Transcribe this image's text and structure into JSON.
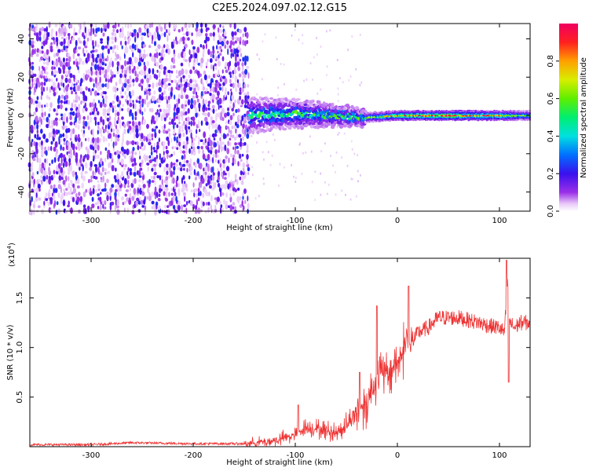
{
  "title": "C2E5.2024.097.02.12.G15",
  "chart_data": [
    {
      "type": "heatmap",
      "xlabel": "Height of straight line (km)",
      "ylabel": "Frequency (Hz)",
      "xlim": [
        -360,
        130
      ],
      "ylim": [
        -50,
        48
      ],
      "xticks": [
        -300,
        -200,
        -100,
        0,
        100
      ],
      "yticks": [
        -40,
        -20,
        0,
        20,
        40
      ],
      "colorbar": {
        "label": "Normalized spectral amplitude",
        "range": [
          0.0,
          1.0
        ],
        "ticks": [
          0.0,
          0.2,
          0.4,
          0.6,
          0.8
        ],
        "tick_labels": [
          "0.0",
          "0.2",
          "0.4",
          "0.6",
          "0.8"
        ]
      },
      "description_series": [
        {
          "name": "noise_field",
          "x_range": [
            -360,
            -145
          ],
          "freq_range": [
            -50,
            48
          ],
          "typical_amplitude": 0.1
        },
        {
          "name": "signal_band_center",
          "x": [
            -145,
            -100,
            -60,
            -30,
            0,
            50,
            100,
            130
          ],
          "freq": [
            0,
            1,
            0,
            -1,
            0,
            0,
            0,
            0
          ],
          "amplitude": [
            0.45,
            0.5,
            0.55,
            0.5,
            0.75,
            0.9,
            0.7,
            0.5
          ]
        }
      ]
    },
    {
      "type": "line",
      "xlabel": "Height of straight line (km)",
      "ylabel": "SNR (10 * v/v)",
      "y_multiplier_label": "(x10",
      "y_multiplier_exp": "4",
      "y_multiplier_close": ")",
      "xlim": [
        -360,
        130
      ],
      "ylim": [
        0,
        1.9
      ],
      "xticks": [
        -300,
        -200,
        -100,
        0,
        100
      ],
      "yticks": [
        0.5,
        1.0,
        1.5
      ],
      "ytick_labels": [
        "0.5",
        "1.0",
        "1.5"
      ],
      "color": "#ee3333",
      "series": [
        {
          "name": "SNR",
          "x": [
            -360,
            -300,
            -260,
            -200,
            -150,
            -120,
            -100,
            -90,
            -80,
            -60,
            -50,
            -40,
            -30,
            -22,
            -15,
            -10,
            -5,
            0,
            5,
            10,
            12,
            20,
            30,
            40,
            60,
            80,
            90,
            100,
            105,
            108,
            110,
            115,
            120,
            130
          ],
          "y": [
            0.02,
            0.02,
            0.04,
            0.03,
            0.03,
            0.06,
            0.12,
            0.2,
            0.18,
            0.14,
            0.22,
            0.35,
            0.45,
            0.65,
            0.75,
            0.7,
            0.8,
            0.85,
            0.95,
            1.1,
            1.0,
            1.15,
            1.2,
            1.3,
            1.3,
            1.25,
            1.22,
            1.2,
            1.15,
            1.7,
            1.25,
            1.2,
            1.25,
            1.25
          ]
        }
      ],
      "spikes": [
        {
          "x": -97,
          "y": 0.42
        },
        {
          "x": -37,
          "y": 0.75
        },
        {
          "x": -20,
          "y": 1.42
        },
        {
          "x": 11,
          "y": 1.62
        },
        {
          "x": 107,
          "y": 1.88
        },
        {
          "x": 109,
          "y": 0.65
        }
      ]
    }
  ]
}
